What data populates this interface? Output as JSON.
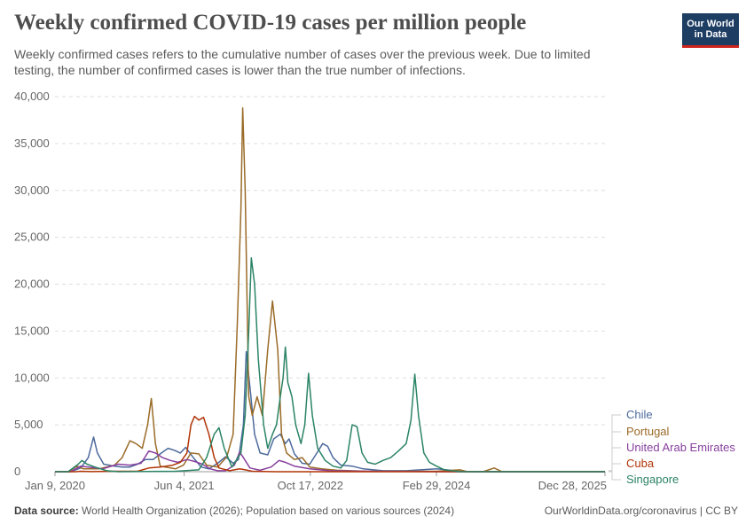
{
  "header": {
    "title": "Weekly confirmed COVID-19 cases per million people",
    "subtitle_line1": "Weekly confirmed cases refers to the cumulative number of cases over the previous week. Due to limited",
    "subtitle_line2": "testing, the number of confirmed cases is lower than the true number of infections."
  },
  "logo": {
    "line1": "Our World",
    "line2": "in Data"
  },
  "footer": {
    "source_label": "Data source:",
    "source_text": "World Health Organization (2026); Population based on various sources (2024)",
    "url": "OurWorldinData.org/coronavirus | CC BY"
  },
  "chart_data": {
    "type": "line",
    "title": "Weekly confirmed COVID-19 cases per million people",
    "xlabel": "",
    "ylabel": "",
    "ylim": [
      0,
      40000
    ],
    "y_ticks": [
      0,
      5000,
      10000,
      15000,
      20000,
      25000,
      30000,
      35000,
      40000
    ],
    "y_tick_labels": [
      "0",
      "5,000",
      "10,000",
      "15,000",
      "20,000",
      "25,000",
      "30,000",
      "35,000",
      "40,000"
    ],
    "x_ticks": [
      "2020-01-09",
      "2021-06-04",
      "2022-10-17",
      "2024-02-29",
      "2025-12-28"
    ],
    "x_tick_labels": [
      "Jan 9, 2020",
      "Jun 4, 2021",
      "Oct 17, 2022",
      "Feb 29, 2024",
      "Dec 28, 2025"
    ],
    "xlim": [
      "2020-01-09",
      "2025-12-28"
    ],
    "grid": "horizontal dashed",
    "legend": "right",
    "series": [
      {
        "name": "Chile",
        "color": "#4c6a9c",
        "points": [
          [
            "2020-01-09",
            0
          ],
          [
            "2020-03-10",
            0
          ],
          [
            "2020-04-20",
            400
          ],
          [
            "2020-05-20",
            1500
          ],
          [
            "2020-06-10",
            3700
          ],
          [
            "2020-06-25",
            2000
          ],
          [
            "2020-07-20",
            800
          ],
          [
            "2020-09-01",
            600
          ],
          [
            "2020-10-01",
            500
          ],
          [
            "2020-11-01",
            500
          ],
          [
            "2020-12-01",
            800
          ],
          [
            "2021-01-01",
            1300
          ],
          [
            "2021-02-01",
            1300
          ],
          [
            "2021-03-01",
            1900
          ],
          [
            "2021-04-01",
            2500
          ],
          [
            "2021-04-25",
            2300
          ],
          [
            "2021-05-20",
            2000
          ],
          [
            "2021-06-10",
            2600
          ],
          [
            "2021-07-10",
            1500
          ],
          [
            "2021-08-10",
            500
          ],
          [
            "2021-09-10",
            300
          ],
          [
            "2021-10-15",
            900
          ],
          [
            "2021-11-15",
            1600
          ],
          [
            "2021-12-15",
            900
          ],
          [
            "2022-01-05",
            1300
          ],
          [
            "2022-01-25",
            5000
          ],
          [
            "2022-02-05",
            12800
          ],
          [
            "2022-02-20",
            9000
          ],
          [
            "2022-03-10",
            4000
          ],
          [
            "2022-04-01",
            2000
          ],
          [
            "2022-05-01",
            1800
          ],
          [
            "2022-05-25",
            3500
          ],
          [
            "2022-06-20",
            4000
          ],
          [
            "2022-07-10",
            3000
          ],
          [
            "2022-07-25",
            3500
          ],
          [
            "2022-08-15",
            1900
          ],
          [
            "2022-09-15",
            900
          ],
          [
            "2022-10-15",
            800
          ],
          [
            "2022-11-10",
            1900
          ],
          [
            "2022-12-05",
            3000
          ],
          [
            "2022-12-25",
            2700
          ],
          [
            "2023-01-15",
            1500
          ],
          [
            "2023-02-15",
            700
          ],
          [
            "2023-04-01",
            600
          ],
          [
            "2023-05-15",
            300
          ],
          [
            "2023-08-01",
            100
          ],
          [
            "2023-11-01",
            100
          ],
          [
            "2024-03-01",
            300
          ],
          [
            "2024-06-01",
            50
          ],
          [
            "2024-08-01",
            0
          ],
          [
            "2025-12-28",
            0
          ]
        ]
      },
      {
        "name": "Portugal",
        "color": "#9a6b28",
        "points": [
          [
            "2020-01-09",
            0
          ],
          [
            "2020-03-01",
            0
          ],
          [
            "2020-04-05",
            600
          ],
          [
            "2020-05-01",
            300
          ],
          [
            "2020-07-01",
            300
          ],
          [
            "2020-09-01",
            700
          ],
          [
            "2020-10-01",
            1500
          ],
          [
            "2020-11-01",
            3300
          ],
          [
            "2020-11-25",
            3000
          ],
          [
            "2020-12-20",
            2500
          ],
          [
            "2021-01-10",
            5000
          ],
          [
            "2021-01-25",
            7800
          ],
          [
            "2021-02-10",
            3000
          ],
          [
            "2021-03-01",
            600
          ],
          [
            "2021-05-01",
            300
          ],
          [
            "2021-06-01",
            700
          ],
          [
            "2021-07-01",
            2000
          ],
          [
            "2021-08-01",
            1900
          ],
          [
            "2021-09-01",
            700
          ],
          [
            "2021-10-15",
            500
          ],
          [
            "2021-11-20",
            1600
          ],
          [
            "2021-12-15",
            4000
          ],
          [
            "2022-01-01",
            16000
          ],
          [
            "2022-01-15",
            28000
          ],
          [
            "2022-01-22",
            38800
          ],
          [
            "2022-02-01",
            30000
          ],
          [
            "2022-02-15",
            8000
          ],
          [
            "2022-03-01",
            6000
          ],
          [
            "2022-03-20",
            8000
          ],
          [
            "2022-04-10",
            6000
          ],
          [
            "2022-05-01",
            13000
          ],
          [
            "2022-05-20",
            18200
          ],
          [
            "2022-06-10",
            13000
          ],
          [
            "2022-06-25",
            4000
          ],
          [
            "2022-07-15",
            2000
          ],
          [
            "2022-08-15",
            1300
          ],
          [
            "2022-09-15",
            1500
          ],
          [
            "2022-10-15",
            500
          ],
          [
            "2022-12-01",
            300
          ],
          [
            "2023-02-01",
            150
          ],
          [
            "2023-06-01",
            50
          ],
          [
            "2024-03-01",
            50
          ],
          [
            "2024-06-01",
            200
          ],
          [
            "2024-07-01",
            0
          ],
          [
            "2024-09-01",
            0
          ],
          [
            "2024-10-15",
            400
          ],
          [
            "2024-11-15",
            0
          ],
          [
            "2025-12-28",
            0
          ]
        ]
      },
      {
        "name": "United Arab Emirates",
        "color": "#883f9e",
        "points": [
          [
            "2020-01-09",
            0
          ],
          [
            "2020-03-10",
            0
          ],
          [
            "2020-04-20",
            600
          ],
          [
            "2020-05-20",
            500
          ],
          [
            "2020-07-15",
            300
          ],
          [
            "2020-09-15",
            800
          ],
          [
            "2020-11-01",
            700
          ],
          [
            "2020-12-15",
            900
          ],
          [
            "2021-01-15",
            2200
          ],
          [
            "2021-02-10",
            2000
          ],
          [
            "2021-03-10",
            1500
          ],
          [
            "2021-04-10",
            1200
          ],
          [
            "2021-05-10",
            1000
          ],
          [
            "2021-06-15",
            1300
          ],
          [
            "2021-07-15",
            1100
          ],
          [
            "2021-08-15",
            800
          ],
          [
            "2021-09-15",
            300
          ],
          [
            "2021-10-15",
            100
          ],
          [
            "2021-11-15",
            100
          ],
          [
            "2021-12-20",
            700
          ],
          [
            "2022-01-10",
            2100
          ],
          [
            "2022-01-25",
            1500
          ],
          [
            "2022-02-20",
            400
          ],
          [
            "2022-04-01",
            150
          ],
          [
            "2022-05-15",
            500
          ],
          [
            "2022-06-15",
            1200
          ],
          [
            "2022-07-10",
            1000
          ],
          [
            "2022-08-15",
            600
          ],
          [
            "2022-10-15",
            300
          ],
          [
            "2023-01-01",
            100
          ],
          [
            "2023-06-01",
            50
          ],
          [
            "2024-06-01",
            0
          ],
          [
            "2025-12-28",
            0
          ]
        ]
      },
      {
        "name": "Cuba",
        "color": "#b13507",
        "points": [
          [
            "2020-01-09",
            0
          ],
          [
            "2020-04-01",
            0
          ],
          [
            "2020-04-20",
            50
          ],
          [
            "2020-06-01",
            10
          ],
          [
            "2020-09-01",
            50
          ],
          [
            "2020-12-01",
            50
          ],
          [
            "2021-01-15",
            400
          ],
          [
            "2021-03-01",
            500
          ],
          [
            "2021-04-20",
            700
          ],
          [
            "2021-05-20",
            1000
          ],
          [
            "2021-06-15",
            2000
          ],
          [
            "2021-07-01",
            5000
          ],
          [
            "2021-07-15",
            5900
          ],
          [
            "2021-08-01",
            5500
          ],
          [
            "2021-08-20",
            5800
          ],
          [
            "2021-09-10",
            4000
          ],
          [
            "2021-10-01",
            1500
          ],
          [
            "2021-10-20",
            400
          ],
          [
            "2021-12-01",
            100
          ],
          [
            "2022-01-10",
            300
          ],
          [
            "2022-02-01",
            200
          ],
          [
            "2022-03-01",
            50
          ],
          [
            "2022-06-01",
            0
          ],
          [
            "2025-12-28",
            0
          ]
        ]
      },
      {
        "name": "Singapore",
        "color": "#2b8465",
        "points": [
          [
            "2020-01-09",
            0
          ],
          [
            "2020-03-01",
            0
          ],
          [
            "2020-04-10",
            800
          ],
          [
            "2020-04-25",
            1200
          ],
          [
            "2020-05-15",
            800
          ],
          [
            "2020-06-15",
            500
          ],
          [
            "2020-08-01",
            100
          ],
          [
            "2020-09-15",
            0
          ],
          [
            "2021-05-01",
            50
          ],
          [
            "2021-08-01",
            200
          ],
          [
            "2021-09-01",
            1500
          ],
          [
            "2021-10-01",
            4000
          ],
          [
            "2021-10-20",
            4700
          ],
          [
            "2021-11-10",
            2500
          ],
          [
            "2021-12-10",
            500
          ],
          [
            "2022-01-15",
            2000
          ],
          [
            "2022-02-01",
            6000
          ],
          [
            "2022-02-15",
            15000
          ],
          [
            "2022-02-25",
            22800
          ],
          [
            "2022-03-10",
            20000
          ],
          [
            "2022-03-25",
            12000
          ],
          [
            "2022-04-15",
            5000
          ],
          [
            "2022-05-01",
            2500
          ],
          [
            "2022-05-20",
            4000
          ],
          [
            "2022-06-05",
            5000
          ],
          [
            "2022-06-20",
            8000
          ],
          [
            "2022-07-01",
            10000
          ],
          [
            "2022-07-10",
            13300
          ],
          [
            "2022-07-20",
            9500
          ],
          [
            "2022-08-05",
            8000
          ],
          [
            "2022-08-20",
            5000
          ],
          [
            "2022-09-10",
            3000
          ],
          [
            "2022-09-25",
            5000
          ],
          [
            "2022-10-10",
            10500
          ],
          [
            "2022-10-25",
            6000
          ],
          [
            "2022-11-15",
            2500
          ],
          [
            "2022-12-15",
            1200
          ],
          [
            "2023-01-15",
            600
          ],
          [
            "2023-02-15",
            400
          ],
          [
            "2023-03-10",
            1200
          ],
          [
            "2023-04-01",
            5000
          ],
          [
            "2023-04-20",
            4800
          ],
          [
            "2023-05-10",
            2000
          ],
          [
            "2023-06-01",
            1000
          ],
          [
            "2023-07-01",
            800
          ],
          [
            "2023-08-01",
            1200
          ],
          [
            "2023-09-01",
            1500
          ],
          [
            "2023-10-01",
            2200
          ],
          [
            "2023-11-01",
            3000
          ],
          [
            "2023-11-20",
            5500
          ],
          [
            "2023-12-05",
            10400
          ],
          [
            "2023-12-20",
            6000
          ],
          [
            "2024-01-10",
            2000
          ],
          [
            "2024-02-01",
            1000
          ],
          [
            "2024-02-29",
            600
          ],
          [
            "2024-04-01",
            200
          ],
          [
            "2024-06-01",
            0
          ],
          [
            "2025-12-28",
            0
          ]
        ]
      }
    ]
  }
}
